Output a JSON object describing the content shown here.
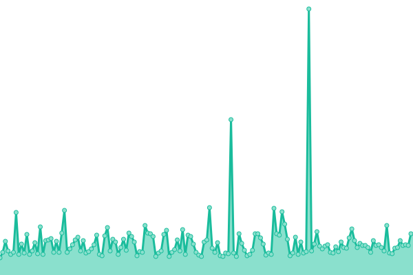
{
  "chart_data": {
    "type": "area",
    "title": "",
    "xlabel": "",
    "ylabel": "",
    "axes_visible": false,
    "grid": false,
    "legend": "none",
    "markers": true,
    "ylim": [
      0,
      400
    ],
    "colors": {
      "line": "#1abc9c",
      "fill": "#8ae0cd",
      "marker_fill": "#8ae0cd",
      "marker_stroke": "#1abc9c"
    },
    "values": [
      25,
      33,
      49,
      35,
      30,
      33,
      91,
      30,
      45,
      32,
      59,
      30,
      35,
      47,
      31,
      70,
      30,
      50,
      51,
      53,
      33,
      49,
      33,
      61,
      94,
      33,
      38,
      44,
      51,
      55,
      35,
      50,
      32,
      34,
      38,
      44,
      58,
      30,
      28,
      57,
      69,
      35,
      52,
      48,
      30,
      40,
      52,
      36,
      61,
      56,
      48,
      28,
      34,
      33,
      72,
      61,
      60,
      56,
      27,
      32,
      35,
      59,
      65,
      27,
      33,
      37,
      51,
      35,
      66,
      30,
      58,
      56,
      45,
      33,
      29,
      27,
      48,
      51,
      98,
      39,
      33,
      47,
      28,
      27,
      32,
      31,
      226,
      32,
      27,
      60,
      46,
      36,
      28,
      30,
      36,
      60,
      60,
      54,
      45,
      29,
      32,
      30,
      97,
      60,
      58,
      92,
      74,
      52,
      28,
      32,
      55,
      30,
      48,
      32,
      34,
      387,
      35,
      45,
      63,
      42,
      38,
      42,
      44,
      33,
      32,
      41,
      34,
      48,
      40,
      39,
      54,
      67,
      50,
      40,
      46,
      43,
      43,
      40,
      33,
      50,
      43,
      44,
      40,
      35,
      72,
      32,
      31,
      39,
      40,
      50,
      43,
      44,
      43,
      60
    ]
  }
}
